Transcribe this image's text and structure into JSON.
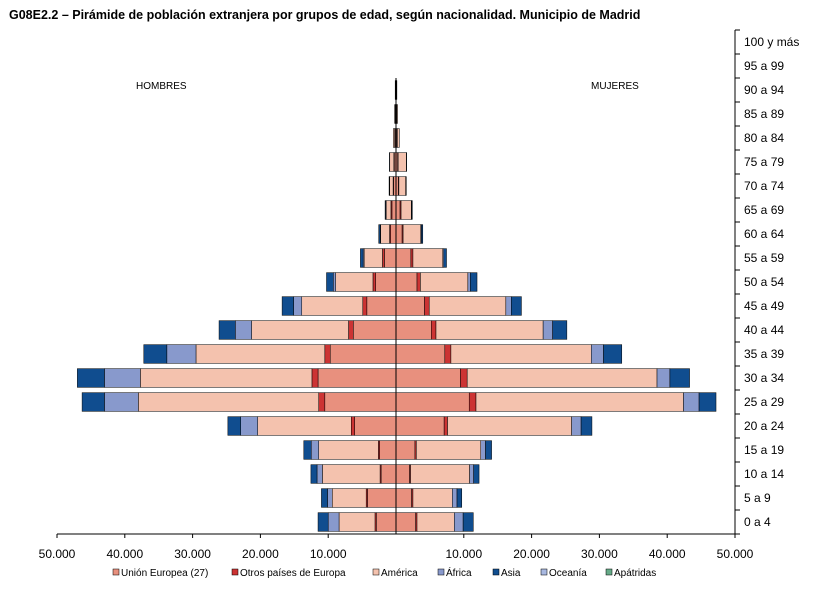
{
  "chart_data": {
    "type": "bar",
    "title": "G08E2.2 – Pirámide de población extranjera por grupos de edad, según nacionalidad. Municipio de Madrid",
    "left_label": "HOMBRES",
    "right_label": "MUJERES",
    "age_groups": [
      "100 y más",
      "95 a 99",
      "90 a 94",
      "85 a 89",
      "80 a 84",
      "75 a 79",
      "70 a 74",
      "65 a 69",
      "60 a 64",
      "55 a 59",
      "50 a 54",
      "45 a 49",
      "40 a 44",
      "35 a 39",
      "30 a 34",
      "25 a 29",
      "20 a 24",
      "15 a 19",
      "10 a 14",
      "5 a 9",
      "0 a 4"
    ],
    "x_ticks": [
      "50.000",
      "40.000",
      "30.000",
      "20.000",
      "10.000",
      "10.000",
      "20.000",
      "30.000",
      "40.000",
      "50.000"
    ],
    "x_tick_values": [
      -50000,
      -40000,
      -30000,
      -20000,
      -10000,
      10000,
      20000,
      30000,
      40000,
      50000
    ],
    "xlim": [
      -50000,
      50000
    ],
    "series": [
      {
        "name": "Unión Europea (27)",
        "color": "#e8907e",
        "men": [
          0,
          0,
          60,
          100,
          150,
          250,
          350,
          600,
          800,
          1700,
          3000,
          4300,
          6300,
          9700,
          11500,
          10500,
          6100,
          2400,
          2200,
          4200,
          2900
        ],
        "women": [
          0,
          0,
          60,
          100,
          150,
          250,
          350,
          600,
          900,
          2200,
          3100,
          4200,
          5200,
          7200,
          9500,
          10800,
          7100,
          2800,
          2000,
          2300,
          2900
        ]
      },
      {
        "name": "Otros países de Europa",
        "color": "#cc3333",
        "men": [
          0,
          0,
          20,
          30,
          50,
          70,
          80,
          150,
          150,
          300,
          400,
          600,
          700,
          800,
          900,
          900,
          500,
          200,
          150,
          200,
          200
        ],
        "women": [
          0,
          0,
          20,
          30,
          50,
          70,
          80,
          150,
          150,
          300,
          500,
          700,
          700,
          900,
          1000,
          1000,
          500,
          200,
          150,
          200,
          200
        ]
      },
      {
        "name": "América",
        "color": "#f4c2ae",
        "men": [
          0,
          0,
          40,
          80,
          200,
          600,
          500,
          700,
          1300,
          2700,
          5500,
          9000,
          14300,
          19000,
          25300,
          26600,
          13800,
          8800,
          8500,
          5000,
          5300
        ],
        "women": [
          0,
          0,
          50,
          100,
          300,
          1200,
          1000,
          1500,
          2600,
          4400,
          7000,
          11300,
          15800,
          20700,
          28000,
          30600,
          18300,
          9500,
          8700,
          5800,
          5500
        ]
      },
      {
        "name": "África",
        "color": "#8899cc",
        "men": [
          0,
          0,
          0,
          0,
          0,
          20,
          40,
          60,
          100,
          150,
          350,
          1200,
          2400,
          4300,
          5300,
          5000,
          2500,
          1100,
          800,
          700,
          1600
        ],
        "women": [
          0,
          0,
          0,
          0,
          0,
          20,
          40,
          60,
          100,
          150,
          350,
          800,
          1400,
          1800,
          1900,
          2300,
          1400,
          700,
          600,
          700,
          1300
        ]
      },
      {
        "name": "Asia",
        "color": "#104d8f",
        "men": [
          0,
          0,
          0,
          0,
          0,
          30,
          50,
          100,
          200,
          400,
          1000,
          1700,
          2400,
          3400,
          4000,
          3300,
          1900,
          1100,
          900,
          900,
          1500
        ],
        "women": [
          0,
          0,
          0,
          0,
          0,
          30,
          50,
          100,
          200,
          400,
          1000,
          1500,
          2100,
          2700,
          2900,
          2500,
          1600,
          900,
          800,
          700,
          1500
        ]
      },
      {
        "name": "Oceanía",
        "color": "#a8b8e0",
        "men": [],
        "women": []
      },
      {
        "name": "Apátridas",
        "color": "#66aa88",
        "men": [],
        "women": []
      }
    ]
  }
}
